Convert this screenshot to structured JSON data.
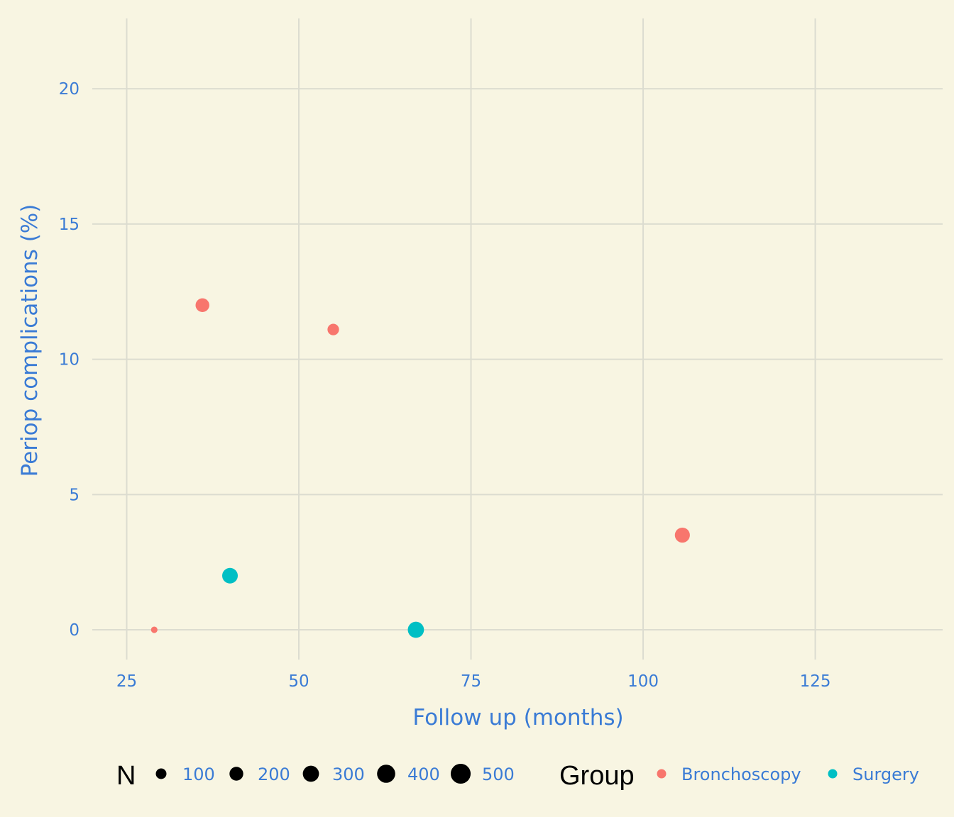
{
  "chart_data": {
    "type": "scatter",
    "title": "",
    "xlabel": "Follow up (months)",
    "ylabel": "Periop complications (%)",
    "xlim": [
      20,
      143.5
    ],
    "ylim": [
      -1.1,
      22.6
    ],
    "x_ticks": [
      25,
      50,
      75,
      100,
      125
    ],
    "y_ticks": [
      0,
      5,
      10,
      15,
      20
    ],
    "x_tick_labels": [
      "25",
      "50",
      "75",
      "100",
      "125"
    ],
    "y_tick_labels": [
      "0",
      "5",
      "10",
      "15",
      "20"
    ],
    "grid": true,
    "series": [
      {
        "name": "Bronchoscopy",
        "color": "#f8766d",
        "points": [
          {
            "x": 29,
            "y": 0,
            "n": 20
          },
          {
            "x": 36,
            "y": 12,
            "n": 200
          },
          {
            "x": 55,
            "y": 11.1,
            "n": 125
          },
          {
            "x": 105.7,
            "y": 3.5,
            "n": 250
          }
        ]
      },
      {
        "name": "Surgery",
        "color": "#00bfc4",
        "points": [
          {
            "x": 40,
            "y": 2,
            "n": 275
          },
          {
            "x": 67,
            "y": 0,
            "n": 300
          }
        ]
      }
    ],
    "legend": {
      "position": "bottom",
      "size_title": "N",
      "size_entries": [
        {
          "label": "100",
          "n": 100
        },
        {
          "label": "200",
          "n": 200
        },
        {
          "label": "300",
          "n": 300
        },
        {
          "label": "400",
          "n": 400
        },
        {
          "label": "500",
          "n": 500
        }
      ],
      "color_title": "Group",
      "color_entries": [
        {
          "label": "Bronchoscopy",
          "color": "#f8766d"
        },
        {
          "label": "Surgery",
          "color": "#00bfc4"
        }
      ]
    }
  }
}
